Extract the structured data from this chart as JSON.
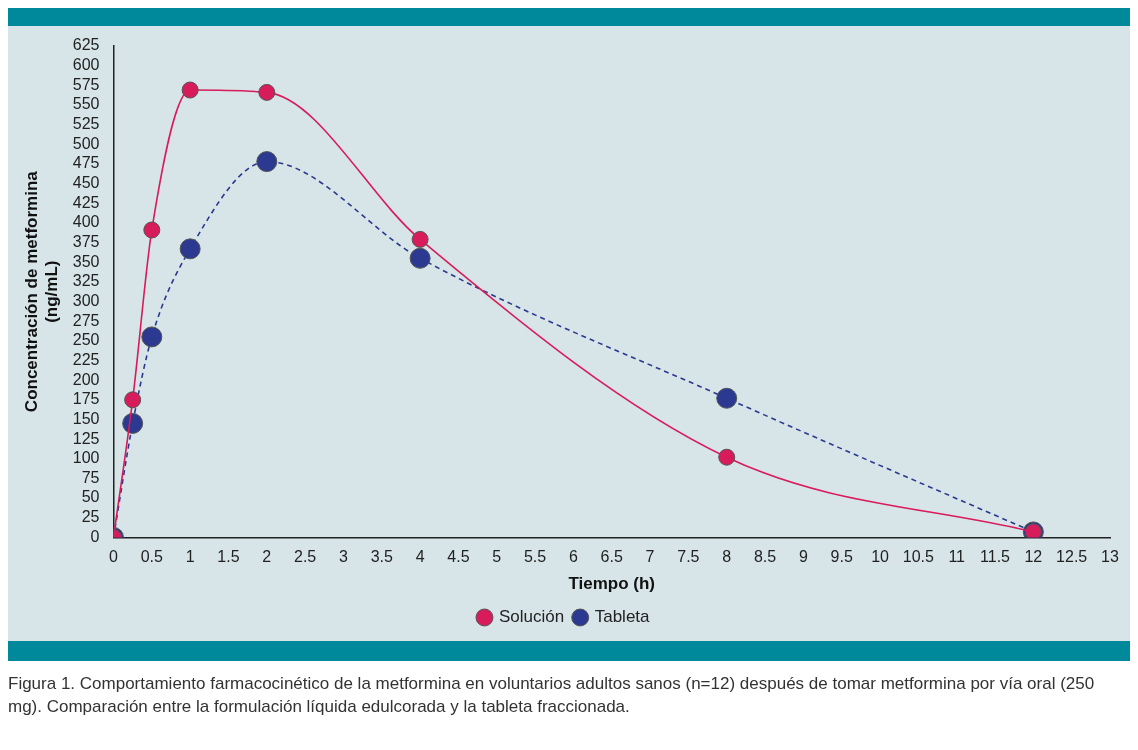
{
  "chart_data": {
    "type": "line",
    "xlabel": "Tiempo (h)",
    "ylabel": "Concentración de metformina\n(ng/mL)",
    "x": [
      0,
      0.25,
      0.5,
      1,
      2,
      4,
      8,
      12
    ],
    "series": [
      {
        "name": "Solución",
        "color": "#d81b5a",
        "line_style": "solid",
        "values": [
          0,
          175,
          391,
          569,
          566,
          379,
          102,
          7
        ]
      },
      {
        "name": "Tableta",
        "color": "#2b3990",
        "line_style": "dashed",
        "values": [
          0,
          145,
          255,
          367,
          478,
          355,
          177,
          7
        ]
      }
    ],
    "xlim": [
      0,
      13
    ],
    "xticks": [
      0,
      0.5,
      1,
      1.5,
      2,
      2.5,
      3,
      3.5,
      4,
      4.5,
      5,
      5.5,
      6,
      6.5,
      7,
      7.5,
      8,
      8.5,
      9,
      9.5,
      10,
      10.5,
      11,
      11.5,
      12,
      12.5,
      13
    ],
    "ylim": [
      0,
      625
    ],
    "yticks": [
      0,
      25,
      50,
      75,
      100,
      125,
      150,
      175,
      200,
      225,
      250,
      275,
      300,
      325,
      350,
      375,
      400,
      425,
      450,
      475,
      500,
      525,
      550,
      575,
      600,
      625
    ],
    "grid": false,
    "legend": "bottom",
    "marker": "circle",
    "annotations": [
      "Figura 1. Comportamiento farmacocinético de la metformina en voluntarios adultos sanos (n=12) después de tomar metformina por vía oral (250 mg). Comparación entre la formulación líquida edulcorada y la tableta fraccionada."
    ]
  }
}
